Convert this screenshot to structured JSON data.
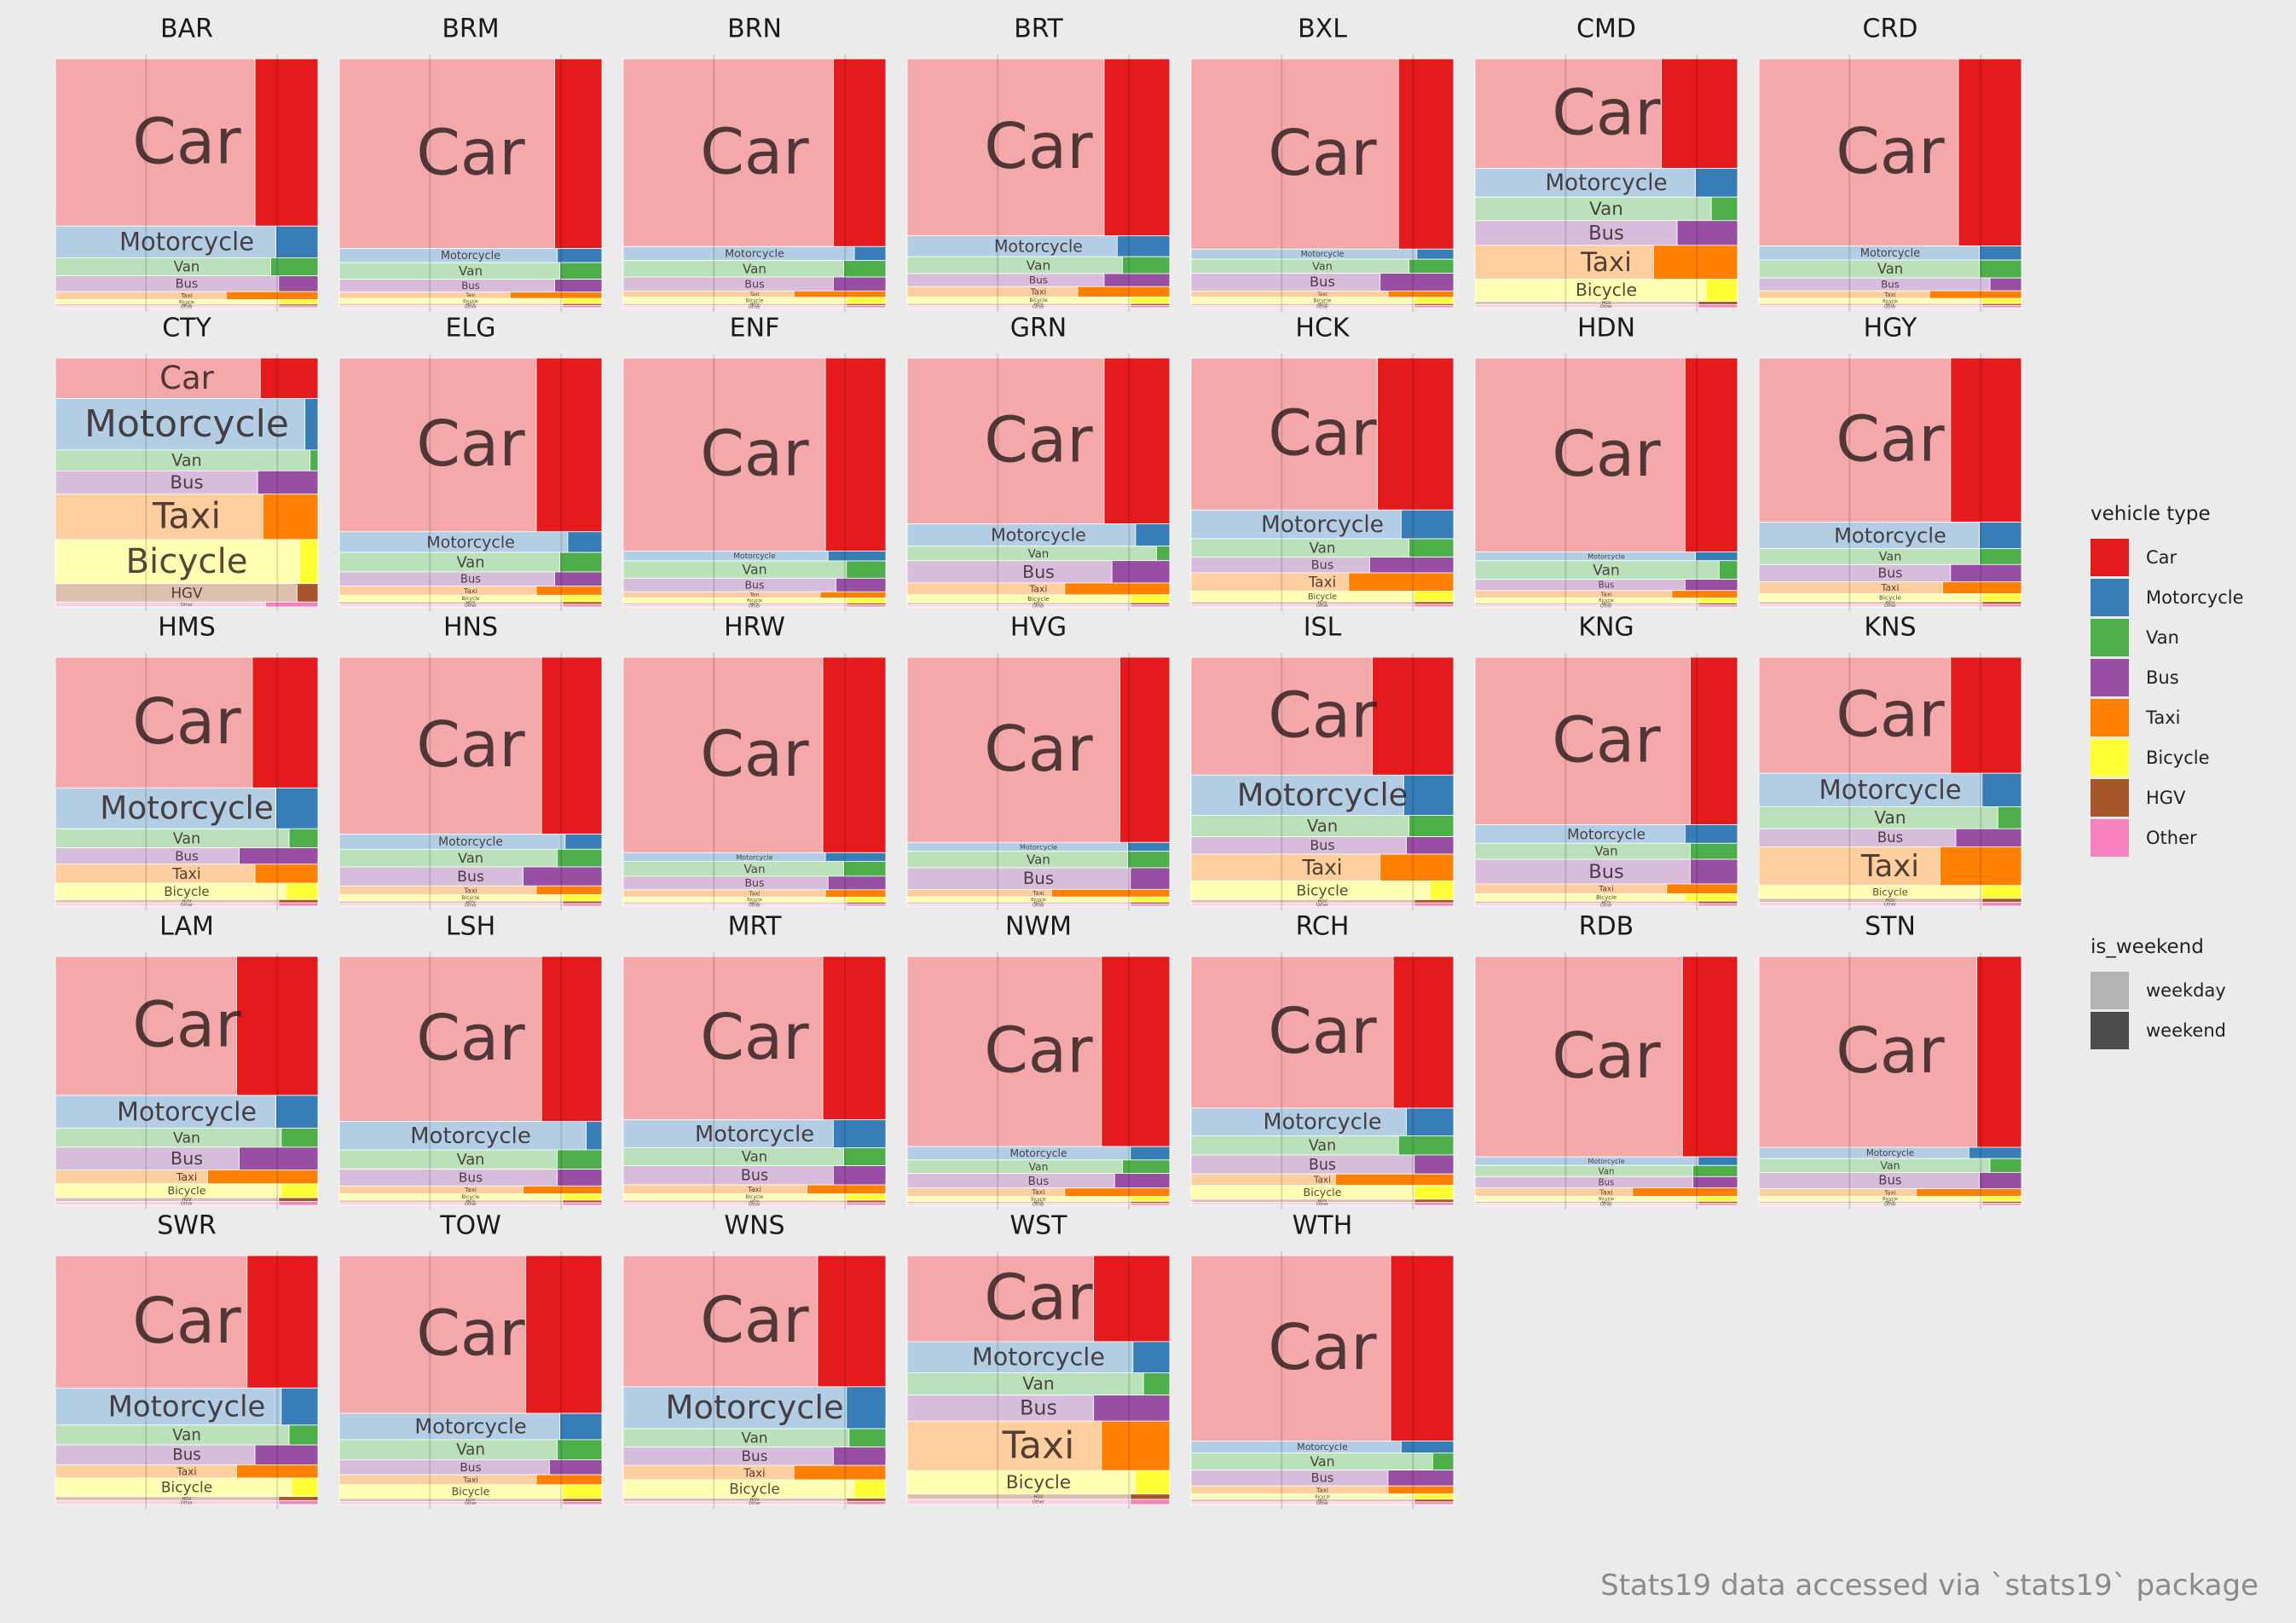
{
  "chart_data": {
    "type": "treemap",
    "caption": "Stats19 data accessed via `stats19` package",
    "vehicle_types": [
      "Car",
      "Motorcycle",
      "Van",
      "Bus",
      "Taxi",
      "Bicycle",
      "HGV",
      "Other"
    ],
    "colors": {
      "Car": "#e41a1c",
      "Motorcycle": "#377eb8",
      "Van": "#4daf4a",
      "Bus": "#984ea3",
      "Taxi": "#ff7f00",
      "Bicycle": "#ffff33",
      "HGV": "#a65628",
      "Other": "#f781bf"
    },
    "weekday_tint": "#ffffff",
    "legend": {
      "vehicle_title": "vehicle type",
      "vehicle_items": [
        {
          "label": "Car",
          "color": "#e41a1c"
        },
        {
          "label": "Motorcycle",
          "color": "#377eb8"
        },
        {
          "label": "Van",
          "color": "#4daf4a"
        },
        {
          "label": "Bus",
          "color": "#984ea3"
        },
        {
          "label": "Taxi",
          "color": "#ff7f00"
        },
        {
          "label": "Bicycle",
          "color": "#ffff33"
        },
        {
          "label": "HGV",
          "color": "#a65628"
        },
        {
          "label": "Other",
          "color": "#f781bf"
        }
      ],
      "weekend_title": "is_weekend",
      "weekend_items": [
        {
          "label": "weekday",
          "color": "#b3b3b3"
        },
        {
          "label": "weekend",
          "color": "#4d4d4d"
        }
      ]
    },
    "panels": [
      {
        "name": "BAR",
        "values": [
          740,
          140,
          80,
          70,
          35,
          20,
          8,
          8
        ],
        "weekend_share": [
          0.24,
          0.16,
          0.18,
          0.15,
          0.35,
          0.15,
          0.15,
          0.15
        ]
      },
      {
        "name": "BRM",
        "values": [
          740,
          55,
          65,
          50,
          25,
          20,
          8,
          8
        ],
        "weekend_share": [
          0.18,
          0.17,
          0.16,
          0.18,
          0.35,
          0.15,
          0.15,
          0.15
        ]
      },
      {
        "name": "BRN",
        "values": [
          740,
          55,
          65,
          55,
          25,
          25,
          8,
          8
        ],
        "weekend_share": [
          0.2,
          0.12,
          0.16,
          0.2,
          0.35,
          0.15,
          0.15,
          0.15
        ]
      },
      {
        "name": "BRT",
        "values": [
          680,
          80,
          65,
          50,
          40,
          25,
          8,
          8
        ],
        "weekend_share": [
          0.25,
          0.2,
          0.18,
          0.25,
          0.35,
          0.15,
          0.15,
          0.15
        ]
      },
      {
        "name": "BXL",
        "values": [
          750,
          40,
          55,
          70,
          25,
          25,
          8,
          8
        ],
        "weekend_share": [
          0.21,
          0.14,
          0.17,
          0.28,
          0.25,
          0.15,
          0.15,
          0.15
        ]
      },
      {
        "name": "CMD",
        "values": [
          420,
          110,
          90,
          95,
          130,
          85,
          12,
          12
        ],
        "weekend_share": [
          0.29,
          0.16,
          0.1,
          0.23,
          0.32,
          0.12,
          0.15,
          0.15
        ]
      },
      {
        "name": "CRD",
        "values": [
          730,
          55,
          70,
          50,
          30,
          20,
          8,
          8
        ],
        "weekend_share": [
          0.24,
          0.16,
          0.16,
          0.12,
          0.35,
          0.15,
          0.15,
          0.15
        ]
      },
      {
        "name": "CTY",
        "values": [
          165,
          210,
          85,
          95,
          185,
          180,
          75,
          20
        ],
        "weekend_share": [
          0.22,
          0.05,
          0.03,
          0.23,
          0.21,
          0.07,
          0.08,
          0.2
        ]
      },
      {
        "name": "ELG",
        "values": [
          670,
          80,
          75,
          55,
          35,
          25,
          10,
          10
        ],
        "weekend_share": [
          0.25,
          0.13,
          0.16,
          0.18,
          0.25,
          0.15,
          0.15,
          0.15
        ]
      },
      {
        "name": "ENF",
        "values": [
          780,
          40,
          70,
          55,
          25,
          20,
          8,
          8
        ],
        "weekend_share": [
          0.23,
          0.22,
          0.15,
          0.19,
          0.25,
          0.15,
          0.15,
          0.15
        ]
      },
      {
        "name": "GRN",
        "values": [
          630,
          85,
          55,
          85,
          45,
          30,
          8,
          8
        ],
        "weekend_share": [
          0.25,
          0.13,
          0.05,
          0.22,
          0.4,
          0.15,
          0.15,
          0.15
        ]
      },
      {
        "name": "HCK",
        "values": [
          580,
          110,
          70,
          60,
          70,
          40,
          10,
          10
        ],
        "weekend_share": [
          0.29,
          0.2,
          0.17,
          0.32,
          0.4,
          0.15,
          0.15,
          0.15
        ]
      },
      {
        "name": "HDN",
        "values": [
          780,
          35,
          75,
          45,
          30,
          20,
          8,
          8
        ],
        "weekend_share": [
          0.2,
          0.16,
          0.07,
          0.2,
          0.25,
          0.15,
          0.15,
          0.15
        ]
      },
      {
        "name": "HGY",
        "values": [
          620,
          100,
          60,
          65,
          45,
          30,
          10,
          10
        ],
        "weekend_share": [
          0.27,
          0.16,
          0.16,
          0.27,
          0.3,
          0.15,
          0.15,
          0.15
        ]
      },
      {
        "name": "HMS",
        "values": [
          480,
          150,
          70,
          60,
          70,
          60,
          12,
          12
        ],
        "weekend_share": [
          0.25,
          0.16,
          0.11,
          0.3,
          0.24,
          0.12,
          0.15,
          0.15
        ]
      },
      {
        "name": "HNS",
        "values": [
          700,
          60,
          70,
          75,
          35,
          25,
          10,
          10
        ],
        "weekend_share": [
          0.23,
          0.14,
          0.17,
          0.3,
          0.25,
          0.15,
          0.15,
          0.15
        ]
      },
      {
        "name": "HRW",
        "values": [
          790,
          35,
          60,
          55,
          30,
          20,
          8,
          8
        ],
        "weekend_share": [
          0.24,
          0.23,
          0.16,
          0.22,
          0.23,
          0.15,
          0.15,
          0.15
        ]
      },
      {
        "name": "HVG",
        "values": [
          730,
          35,
          65,
          85,
          30,
          20,
          8,
          8
        ],
        "weekend_share": [
          0.19,
          0.16,
          0.16,
          0.15,
          0.45,
          0.15,
          0.15,
          0.15
        ]
      },
      {
        "name": "ISL",
        "values": [
          440,
          150,
          80,
          65,
          100,
          70,
          12,
          12
        ],
        "weekend_share": [
          0.31,
          0.19,
          0.17,
          0.18,
          0.28,
          0.09,
          0.15,
          0.15
        ]
      },
      {
        "name": "KNG",
        "values": [
          680,
          75,
          65,
          100,
          40,
          30,
          10,
          10
        ],
        "weekend_share": [
          0.18,
          0.2,
          0.18,
          0.18,
          0.27,
          0.2,
          0.15,
          0.15
        ]
      },
      {
        "name": "KNS",
        "values": [
          450,
          130,
          85,
          70,
          150,
          50,
          15,
          15
        ],
        "weekend_share": [
          0.27,
          0.15,
          0.09,
          0.25,
          0.31,
          0.15,
          0.15,
          0.15
        ]
      },
      {
        "name": "LAM",
        "values": [
          550,
          130,
          75,
          90,
          55,
          55,
          15,
          15
        ],
        "weekend_share": [
          0.31,
          0.16,
          0.14,
          0.3,
          0.42,
          0.14,
          0.15,
          0.15
        ]
      },
      {
        "name": "LSH",
        "values": [
          640,
          110,
          75,
          65,
          30,
          25,
          10,
          10
        ],
        "weekend_share": [
          0.23,
          0.06,
          0.17,
          0.17,
          0.3,
          0.15,
          0.15,
          0.15
        ]
      },
      {
        "name": "MRT",
        "values": [
          640,
          110,
          70,
          75,
          35,
          25,
          10,
          10
        ],
        "weekend_share": [
          0.24,
          0.2,
          0.16,
          0.2,
          0.3,
          0.15,
          0.15,
          0.15
        ]
      },
      {
        "name": "NWM",
        "values": [
          780,
          55,
          55,
          60,
          35,
          20,
          8,
          8
        ],
        "weekend_share": [
          0.26,
          0.15,
          0.18,
          0.21,
          0.4,
          0.15,
          0.15,
          0.15
        ]
      },
      {
        "name": "RCH",
        "values": [
          600,
          110,
          75,
          75,
          45,
          55,
          12,
          12
        ],
        "weekend_share": [
          0.23,
          0.18,
          0.21,
          0.15,
          0.45,
          0.15,
          0.15,
          0.15
        ]
      },
      {
        "name": "RDB",
        "values": [
          810,
          35,
          45,
          45,
          35,
          20,
          8,
          8
        ],
        "weekend_share": [
          0.21,
          0.15,
          0.17,
          0.17,
          0.4,
          0.15,
          0.15,
          0.15
        ]
      },
      {
        "name": "STN",
        "values": [
          760,
          45,
          55,
          65,
          30,
          20,
          8,
          8
        ],
        "weekend_share": [
          0.17,
          0.2,
          0.12,
          0.16,
          0.4,
          0.15,
          0.15,
          0.15
        ]
      },
      {
        "name": "SWR",
        "values": [
          500,
          140,
          75,
          75,
          50,
          70,
          15,
          15
        ],
        "weekend_share": [
          0.27,
          0.14,
          0.11,
          0.24,
          0.31,
          0.1,
          0.15,
          0.15
        ]
      },
      {
        "name": "TOW",
        "values": [
          630,
          105,
          80,
          60,
          40,
          55,
          12,
          12
        ],
        "weekend_share": [
          0.29,
          0.16,
          0.17,
          0.2,
          0.25,
          0.15,
          0.15,
          0.15
        ]
      },
      {
        "name": "WNS",
        "values": [
          500,
          160,
          70,
          70,
          55,
          70,
          12,
          12
        ],
        "weekend_share": [
          0.26,
          0.15,
          0.14,
          0.2,
          0.35,
          0.12,
          0.15,
          0.15
        ]
      },
      {
        "name": "WST",
        "values": [
          330,
          120,
          85,
          100,
          190,
          90,
          20,
          20
        ],
        "weekend_share": [
          0.29,
          0.14,
          0.1,
          0.29,
          0.26,
          0.13,
          0.15,
          0.15
        ]
      },
      {
        "name": "WTH",
        "values": [
          700,
          45,
          65,
          60,
          30,
          20,
          10,
          10
        ],
        "weekend_share": [
          0.24,
          0.2,
          0.08,
          0.25,
          0.25,
          0.15,
          0.15,
          0.15
        ]
      }
    ]
  }
}
